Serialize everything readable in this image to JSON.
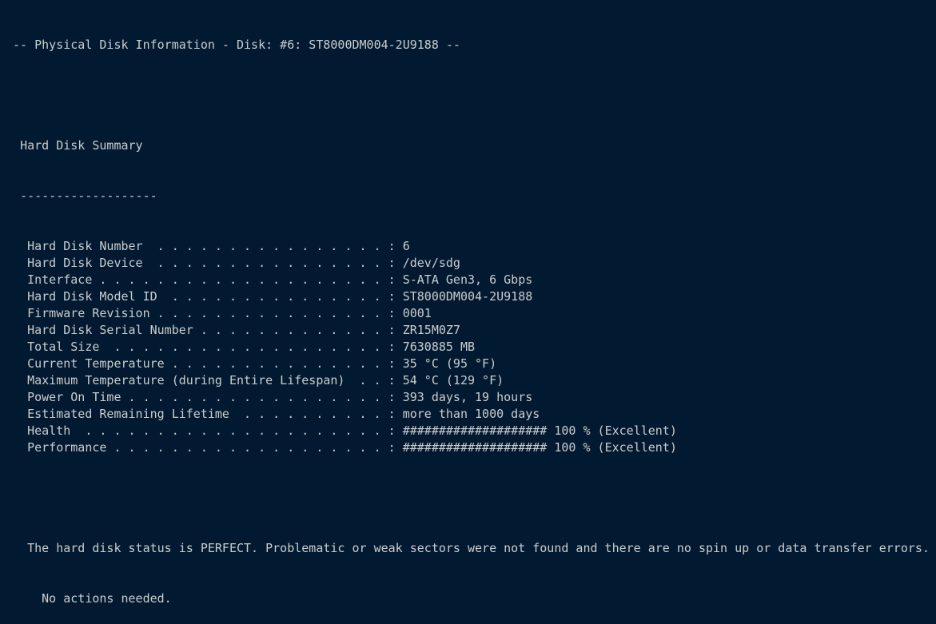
{
  "header": "-- Physical Disk Information - Disk: #6: ST8000DM004-2U9188 --",
  "section_title": "Hard Disk Summary",
  "section_rule": "-------------------",
  "rows": [
    {
      "label": "Hard Disk Number",
      "value": "6"
    },
    {
      "label": "Hard Disk Device",
      "value": "/dev/sdg"
    },
    {
      "label": "Interface",
      "value": "S-ATA Gen3, 6 Gbps"
    },
    {
      "label": "Hard Disk Model ID",
      "value": "ST8000DM004-2U9188"
    },
    {
      "label": "Firmware Revision",
      "value": "0001"
    },
    {
      "label": "Hard Disk Serial Number",
      "value": "ZR15M0Z7"
    },
    {
      "label": "Total Size",
      "value": "7630885 MB"
    },
    {
      "label": "Current Temperature",
      "value": "35 °C (95 °F)"
    },
    {
      "label": "Maximum Temperature (during Entire Lifespan)",
      "value": "54 °C (129 °F)"
    },
    {
      "label": "Power On Time",
      "value": "393 days, 19 hours"
    },
    {
      "label": "Estimated Remaining Lifetime",
      "value": "more than 1000 days"
    },
    {
      "label": "Health",
      "value": "#################### 100 % (Excellent)"
    },
    {
      "label": "Performance",
      "value": "#################### 100 % (Excellent)"
    }
  ],
  "health_percent": 100,
  "performance_percent": 100,
  "status_line1": "The hard disk status is PERFECT. Problematic or weak sectors were not found and there are no spin up or data transfer errors.",
  "status_line2": "No actions needed."
}
